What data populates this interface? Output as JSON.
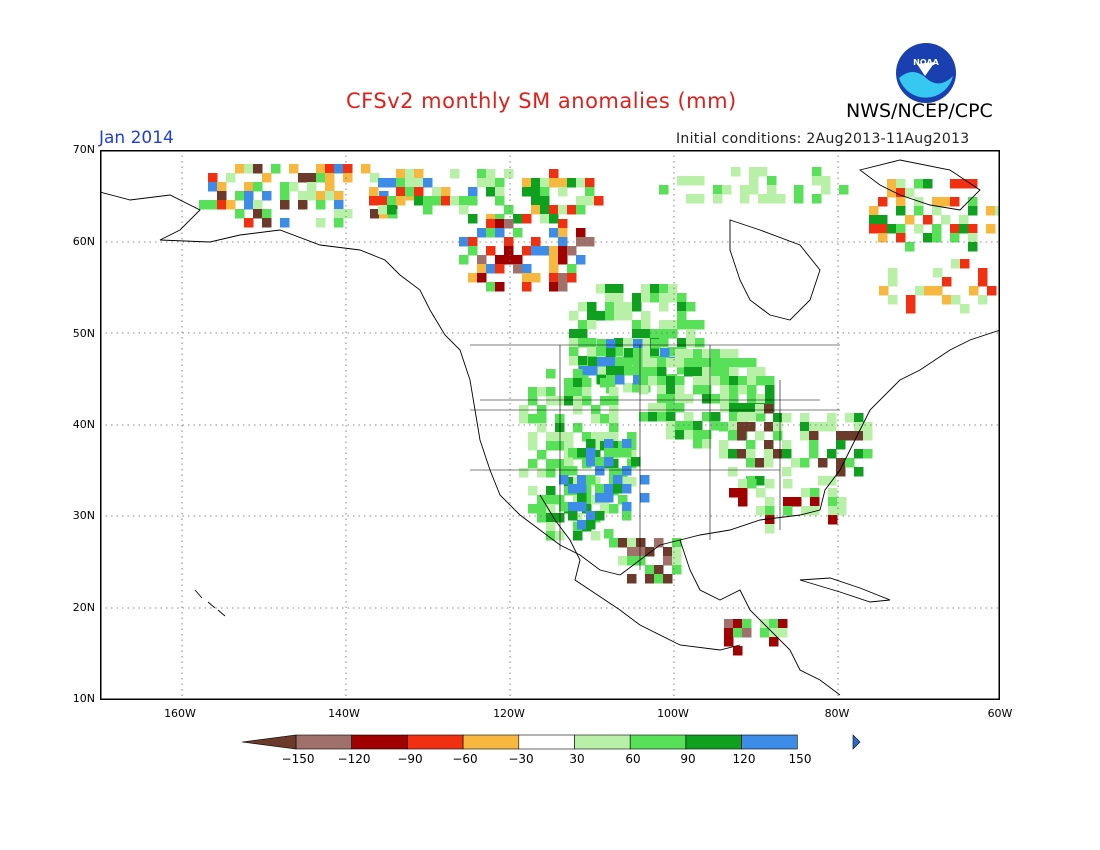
{
  "header": {
    "title": "CFSv2 monthly SM anomalies (mm)",
    "agency": "NWS/NCEP/CPC",
    "period": "Jan 2014",
    "initial_conditions": "Initial conditions: 2Aug2013-11Aug2013",
    "logo_text": "NOAA"
  },
  "axes": {
    "lat_labels": [
      "70N",
      "60N",
      "50N",
      "40N",
      "30N",
      "20N",
      "10N"
    ],
    "lon_labels": [
      "160W",
      "140W",
      "120W",
      "100W",
      "80W",
      "60W"
    ]
  },
  "colorbar": {
    "labels": [
      "−150",
      "−120",
      "−90",
      "−60",
      "−30",
      "30",
      "60",
      "90",
      "120",
      "150"
    ],
    "colors": [
      "#6b3a2a",
      "#a0706a",
      "#a00000",
      "#f03010",
      "#f8b840",
      "#ffffff",
      "#b8f0a8",
      "#58e058",
      "#10a020",
      "#3c8ce8",
      "#2a6bd0"
    ]
  },
  "map_colors": {
    "land_outline": "#000000",
    "grid": "#555555"
  }
}
